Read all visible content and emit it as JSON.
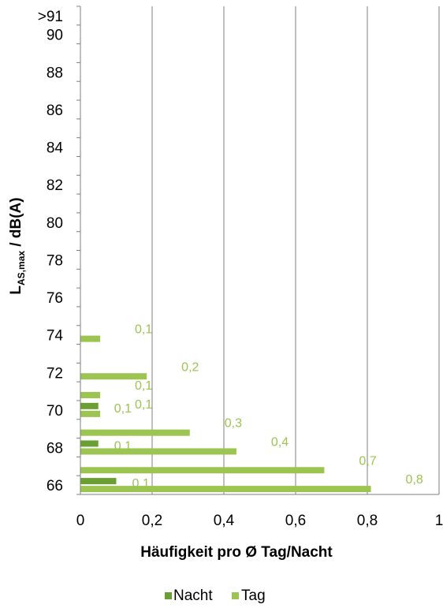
{
  "chart_data": {
    "type": "bar",
    "orientation": "horizontal",
    "title": "",
    "ylabel_main": "L",
    "ylabel_sub": "AS,max",
    "ylabel_rest": " / dB(A)",
    "xlabel": "Häufigkeit pro Ø Tag/Nacht",
    "xlim": [
      0,
      1
    ],
    "x_ticks": [
      "0",
      "0,2",
      "0,4",
      "0,6",
      "0,8",
      "1"
    ],
    "x_tick_values": [
      0,
      0.2,
      0.4,
      0.6,
      0.8,
      1
    ],
    "grid": "vertical",
    "legend_position": "bottom",
    "categories": [
      "66",
      "67",
      "68",
      "69",
      "70",
      "71",
      "72",
      "73",
      "74",
      "75",
      "76",
      "77",
      "78",
      "79",
      "80",
      "81",
      "82",
      "83",
      "84",
      "85",
      "86",
      "87",
      "88",
      "89",
      "90",
      ">91"
    ],
    "category_labels": [
      "66",
      "",
      "68",
      "",
      "70",
      "",
      "72",
      "",
      "74",
      "",
      "76",
      "",
      "78",
      "",
      "80",
      "",
      "82",
      "",
      "84",
      "",
      "86",
      "",
      "88",
      "",
      "90",
      ">91"
    ],
    "series": [
      {
        "name": "Nacht",
        "color": "#6aa033",
        "values": [
          0.1,
          null,
          0.05,
          null,
          0.05,
          null,
          null,
          null,
          null,
          null,
          null,
          null,
          null,
          null,
          null,
          null,
          null,
          null,
          null,
          null,
          null,
          null,
          null,
          null,
          null,
          null
        ],
        "labels": [
          "0,1",
          "",
          "0,1",
          "",
          "0,1",
          "",
          "",
          "",
          "",
          "",
          "",
          "",
          "",
          "",
          "",
          "",
          "",
          "",
          "",
          "",
          "",
          "",
          "",
          "",
          "",
          ""
        ]
      },
      {
        "name": "Tag",
        "color": "#9bc450",
        "values": [
          0.81,
          0.68,
          0.435,
          0.305,
          0.055,
          0.055,
          0.185,
          null,
          0.055,
          null,
          null,
          null,
          null,
          null,
          null,
          null,
          null,
          null,
          null,
          null,
          null,
          null,
          null,
          null,
          null,
          null
        ],
        "labels": [
          "0,8",
          "0,7",
          "0,4",
          "0,3",
          "0,1",
          "0,1",
          "0,2",
          "",
          "0,1",
          "",
          "",
          "",
          "",
          "",
          "",
          "",
          "",
          "",
          "",
          "",
          "",
          "",
          "",
          "",
          "",
          ""
        ]
      }
    ]
  }
}
